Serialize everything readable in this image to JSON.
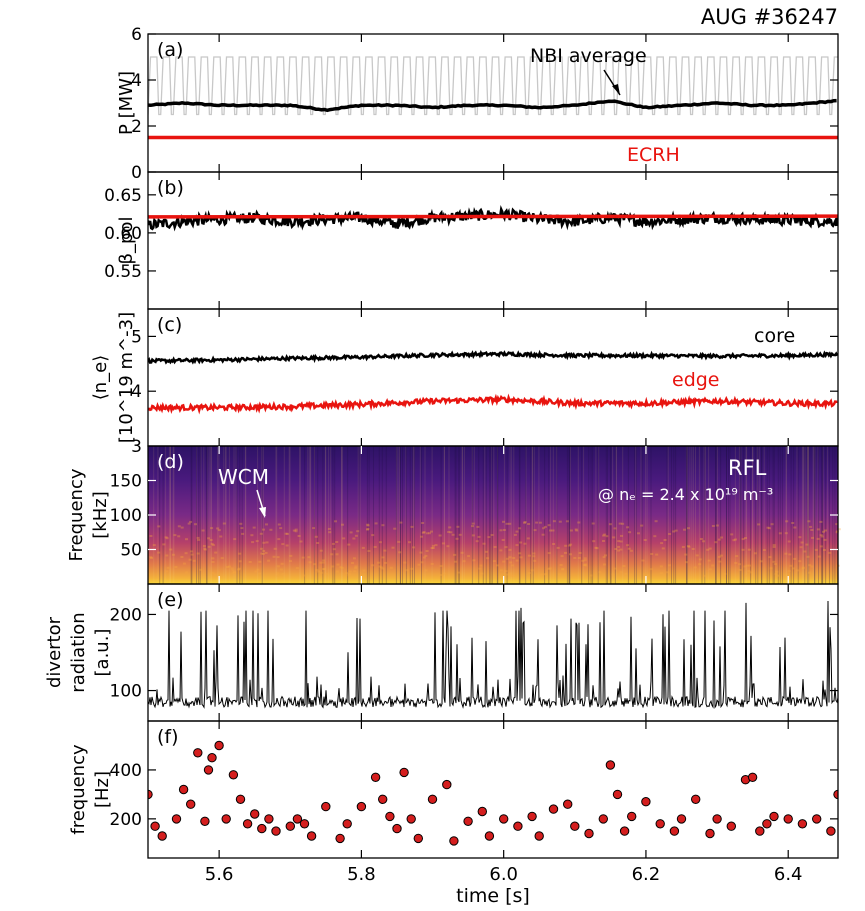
{
  "title": "AUG #36247",
  "xlabel": "time [s]",
  "xlim": [
    5.5,
    6.47
  ],
  "xticks": [
    "5.6",
    "5.8",
    "6.0",
    "6.2",
    "6.4"
  ],
  "panels": [
    {
      "tag": "(a)",
      "ylabel": [
        "P [MW]"
      ],
      "yticks": [
        "0",
        "2",
        "4",
        "6"
      ]
    },
    {
      "tag": "(b)",
      "ylabel": [
        "β_pol"
      ],
      "yticks": [
        "0.55",
        "0.60",
        "0.65"
      ]
    },
    {
      "tag": "(c)",
      "ylabel": [
        "⟨n_e⟩",
        "[10^19 m^-3]"
      ],
      "yticks": [
        "4",
        "5"
      ]
    },
    {
      "tag": "(d)",
      "ylabel": [
        "Frequency",
        "[kHz]"
      ],
      "yticks": [
        "50",
        "100",
        "150"
      ]
    },
    {
      "tag": "(e)",
      "ylabel": [
        "divertor",
        "radiation",
        "[a.u.]"
      ],
      "yticks": [
        "100",
        "200"
      ]
    },
    {
      "tag": "(f)",
      "ylabel": [
        "frequency",
        "[Hz]"
      ],
      "yticks": [
        "200",
        "400"
      ]
    }
  ],
  "annotations": {
    "nbi": "NBI average",
    "ecrh": "ECRH",
    "core": "core",
    "edge": "edge",
    "wcm": "WCM",
    "rfl": "RFL",
    "rfl_density": "@ nₑ = 2.4 x 10¹⁹ m⁻³"
  },
  "colors": {
    "black": "#000000",
    "red": "#e8140f",
    "nbi_raw": "#c8c8c8",
    "marker": "#d41e1e"
  },
  "chart_data": [
    {
      "type": "line",
      "panel": "(a)",
      "ylabel": "P [MW]",
      "ylim": [
        0,
        6
      ],
      "series": [
        {
          "name": "NBI average",
          "x": [
            5.5,
            5.55,
            5.6,
            5.65,
            5.7,
            5.75,
            5.8,
            5.85,
            5.9,
            5.95,
            6.0,
            6.05,
            6.1,
            6.15,
            6.2,
            6.25,
            6.3,
            6.35,
            6.4,
            6.47
          ],
          "y": [
            2.9,
            3.0,
            2.9,
            2.9,
            2.9,
            2.7,
            2.9,
            2.9,
            2.8,
            2.9,
            2.9,
            2.8,
            2.9,
            3.1,
            2.8,
            2.9,
            3.0,
            2.9,
            2.9,
            3.1
          ]
        },
        {
          "name": "ECRH",
          "x": [
            5.5,
            6.47
          ],
          "y": [
            1.5,
            1.5
          ]
        },
        {
          "name": "NBI",
          "note": "modulated raw NBI, ~2.5 to 5 MW",
          "low": 2.5,
          "high": 5.0
        }
      ]
    },
    {
      "type": "line",
      "panel": "(b)",
      "ylabel": "β_pol",
      "ylim": [
        0.5,
        0.68
      ],
      "series": [
        {
          "name": "",
          "x": [
            5.5,
            5.55,
            5.6,
            5.65,
            5.7,
            5.75,
            5.8,
            5.85,
            5.9,
            5.95,
            6.0,
            6.05,
            6.1,
            6.15,
            6.2,
            6.25,
            6.3,
            6.35,
            6.4,
            6.47
          ],
          "y": [
            0.61,
            0.615,
            0.618,
            0.62,
            0.615,
            0.618,
            0.62,
            0.612,
            0.62,
            0.622,
            0.625,
            0.618,
            0.615,
            0.62,
            0.615,
            0.618,
            0.62,
            0.618,
            0.617,
            0.615
          ]
        },
        {
          "name": "",
          "x": [
            5.5,
            6.47
          ],
          "y": [
            0.621,
            0.622
          ]
        }
      ]
    },
    {
      "type": "line",
      "panel": "(c)",
      "ylabel": "⟨n_e⟩ [10^19 m^-3]",
      "ylim": [
        3.0,
        5.5
      ],
      "series": [
        {
          "name": "core",
          "x": [
            5.5,
            5.6,
            5.7,
            5.8,
            5.9,
            6.0,
            6.1,
            6.2,
            6.3,
            6.4,
            6.47
          ],
          "y": [
            4.55,
            4.57,
            4.6,
            4.62,
            4.66,
            4.68,
            4.65,
            4.65,
            4.64,
            4.65,
            4.67
          ]
        },
        {
          "name": "edge",
          "x": [
            5.5,
            5.6,
            5.7,
            5.8,
            5.9,
            6.0,
            6.1,
            6.2,
            6.3,
            6.4,
            6.47
          ],
          "y": [
            3.7,
            3.7,
            3.72,
            3.76,
            3.82,
            3.85,
            3.78,
            3.78,
            3.82,
            3.78,
            3.77
          ]
        }
      ]
    },
    {
      "type": "heatmap",
      "panel": "(d)",
      "ylabel": "Frequency [kHz]",
      "ylim": [
        0,
        200
      ],
      "note": "spectrogram (RFL), WCM band ~40-100 kHz"
    },
    {
      "type": "line",
      "panel": "(e)",
      "ylabel": "divertor radiation [a.u.]",
      "ylim": [
        60,
        240
      ],
      "series": [
        {
          "name": "",
          "baseline": 85,
          "peak_range": [
            150,
            225
          ]
        }
      ]
    },
    {
      "type": "scatter",
      "panel": "(f)",
      "ylabel": "frequency [Hz]",
      "ylim": [
        40,
        600
      ],
      "series": [
        {
          "name": "",
          "x": [
            5.5,
            5.51,
            5.52,
            5.54,
            5.55,
            5.56,
            5.57,
            5.58,
            5.585,
            5.59,
            5.6,
            5.61,
            5.62,
            5.63,
            5.64,
            5.65,
            5.66,
            5.67,
            5.68,
            5.7,
            5.71,
            5.72,
            5.73,
            5.75,
            5.77,
            5.78,
            5.8,
            5.82,
            5.83,
            5.84,
            5.85,
            5.86,
            5.87,
            5.88,
            5.9,
            5.92,
            5.93,
            5.95,
            5.97,
            5.98,
            6.0,
            6.02,
            6.04,
            6.05,
            6.07,
            6.09,
            6.1,
            6.12,
            6.14,
            6.15,
            6.16,
            6.17,
            6.18,
            6.2,
            6.22,
            6.24,
            6.25,
            6.27,
            6.29,
            6.3,
            6.32,
            6.34,
            6.35,
            6.36,
            6.37,
            6.38,
            6.4,
            6.42,
            6.44,
            6.46,
            6.47
          ],
          "y": [
            300,
            170,
            130,
            200,
            320,
            260,
            470,
            190,
            400,
            450,
            500,
            200,
            380,
            280,
            180,
            220,
            160,
            200,
            150,
            170,
            200,
            180,
            130,
            250,
            120,
            180,
            250,
            370,
            280,
            210,
            160,
            390,
            200,
            120,
            280,
            340,
            110,
            190,
            230,
            130,
            200,
            170,
            210,
            130,
            240,
            260,
            170,
            140,
            200,
            420,
            300,
            150,
            210,
            270,
            180,
            150,
            200,
            280,
            140,
            200,
            170,
            360,
            370,
            150,
            180,
            210,
            200,
            180,
            200,
            150,
            300
          ]
        }
      ]
    }
  ]
}
